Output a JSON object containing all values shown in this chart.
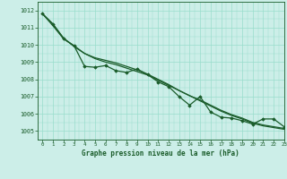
{
  "title": "Graphe pression niveau de la mer (hPa)",
  "background_color": "#cceee8",
  "grid_color": "#99ddcc",
  "line_color": "#1a5c2a",
  "marker_color": "#1a5c2a",
  "xlim": [
    -0.5,
    23
  ],
  "ylim": [
    1004.5,
    1012.5
  ],
  "yticks": [
    1005,
    1006,
    1007,
    1008,
    1009,
    1010,
    1011,
    1012
  ],
  "xticks": [
    0,
    1,
    2,
    3,
    4,
    5,
    6,
    7,
    8,
    9,
    10,
    11,
    12,
    13,
    14,
    15,
    16,
    17,
    18,
    19,
    20,
    21,
    22,
    23
  ],
  "series_smooth": [
    1011.8,
    1011.2,
    1010.4,
    1009.9,
    1009.5,
    1009.2,
    1009.0,
    1008.85,
    1008.65,
    1008.45,
    1008.25,
    1007.95,
    1007.65,
    1007.35,
    1007.05,
    1006.8,
    1006.5,
    1006.2,
    1005.95,
    1005.75,
    1005.5,
    1005.35,
    1005.25,
    1005.15
  ],
  "series_marked": [
    1011.8,
    1011.2,
    1010.35,
    1009.95,
    1008.75,
    1008.7,
    1008.8,
    1008.5,
    1008.4,
    1008.6,
    1008.28,
    1007.85,
    1007.58,
    1007.0,
    1006.5,
    1007.0,
    1006.1,
    1005.8,
    1005.75,
    1005.6,
    1005.4,
    1005.7,
    1005.7,
    1005.25
  ],
  "series_jagged": [
    1011.8,
    1011.1,
    1010.35,
    1009.95,
    1009.5,
    1009.25,
    1009.1,
    1008.95,
    1008.75,
    1008.55,
    1008.3,
    1008.0,
    1007.7,
    1007.35,
    1007.05,
    1006.75,
    1006.45,
    1006.15,
    1005.9,
    1005.7,
    1005.45,
    1005.3,
    1005.2,
    1005.1
  ]
}
